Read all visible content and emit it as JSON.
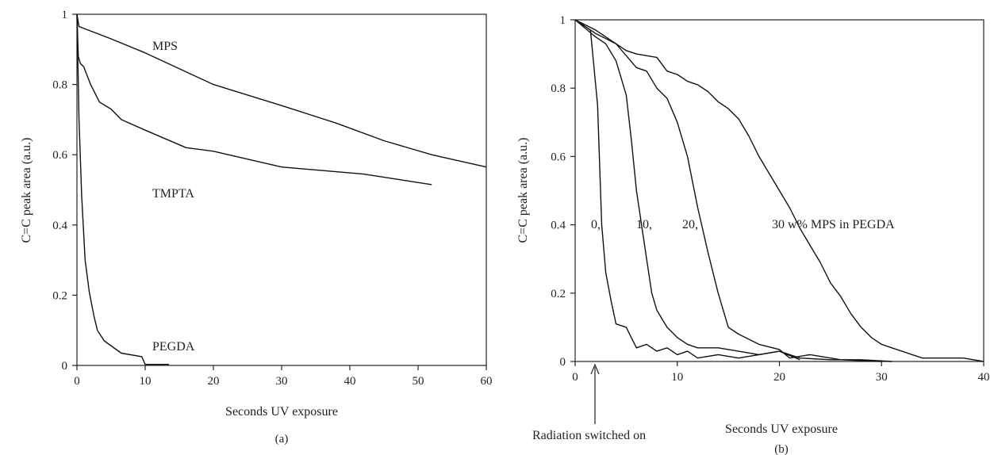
{
  "chart_data": [
    {
      "id": "a",
      "type": "line",
      "panel_label": "(a)",
      "title": "",
      "xlabel": "Seconds UV exposure",
      "ylabel": "C=C peak area (a.u.)",
      "xlim": [
        0,
        60
      ],
      "ylim": [
        0,
        1
      ],
      "xticks": [
        0,
        10,
        20,
        30,
        40,
        50,
        60
      ],
      "yticks": [
        0,
        0.2,
        0.4,
        0.6,
        0.8,
        1
      ],
      "series": [
        {
          "name": "MPS",
          "x": [
            0,
            0.3,
            5,
            10,
            20,
            30,
            38,
            45,
            52,
            60
          ],
          "y": [
            1,
            0.965,
            0.93,
            0.89,
            0.8,
            0.74,
            0.69,
            0.64,
            0.6,
            0.565
          ]
        },
        {
          "name": "TMPTA",
          "x": [
            0,
            0.2,
            0.5,
            1,
            2,
            3.3,
            5,
            6.5,
            10,
            16,
            20,
            30,
            42,
            52
          ],
          "y": [
            1,
            0.88,
            0.86,
            0.85,
            0.8,
            0.75,
            0.73,
            0.7,
            0.67,
            0.62,
            0.61,
            0.565,
            0.545,
            0.515
          ]
        },
        {
          "name": "PEGDA",
          "x": [
            0,
            0.3,
            0.7,
            1.2,
            1.8,
            2.5,
            3,
            4,
            6.5,
            9.5,
            10,
            13.5
          ],
          "y": [
            1,
            0.7,
            0.48,
            0.3,
            0.21,
            0.14,
            0.1,
            0.07,
            0.035,
            0.025,
            0.003,
            0.003
          ]
        }
      ]
    },
    {
      "id": "b",
      "type": "line",
      "panel_label": "(b)",
      "title": "",
      "xlabel": "Seconds UV exposure",
      "ylabel": "C=C peak area (a.u.)",
      "xlim": [
        0,
        40
      ],
      "ylim": [
        0,
        1
      ],
      "xticks": [
        0,
        10,
        20,
        30,
        40
      ],
      "yticks": [
        0,
        0.2,
        0.4,
        0.6,
        0.8,
        1
      ],
      "annotations": {
        "radiation": {
          "text": "Radiation switched on",
          "x": 2
        },
        "labels": [
          "0,",
          "10,",
          "20,",
          "30 w% MPS in PEGDA"
        ]
      },
      "series": [
        {
          "name": "0",
          "x": [
            0,
            1.5,
            2.2,
            2.6,
            3,
            3.5,
            4,
            5,
            6,
            7,
            8,
            9,
            10,
            11,
            12,
            14,
            16,
            18,
            20,
            22
          ],
          "y": [
            1,
            0.97,
            0.75,
            0.4,
            0.26,
            0.18,
            0.11,
            0.1,
            0.04,
            0.05,
            0.03,
            0.04,
            0.02,
            0.03,
            0.01,
            0.02,
            0.01,
            0.02,
            0.03,
            0.005
          ]
        },
        {
          "name": "10",
          "x": [
            0,
            2,
            3,
            4,
            5,
            5.5,
            6,
            6.5,
            7,
            7.5,
            8,
            9,
            10,
            11,
            12,
            14,
            16,
            18,
            20,
            22,
            25,
            28,
            31
          ],
          "y": [
            1,
            0.95,
            0.93,
            0.88,
            0.78,
            0.65,
            0.5,
            0.4,
            0.3,
            0.2,
            0.15,
            0.1,
            0.07,
            0.05,
            0.04,
            0.04,
            0.03,
            0.02,
            0.03,
            0.01,
            0.005,
            0.005,
            0.0
          ]
        },
        {
          "name": "20",
          "x": [
            0,
            2,
            4,
            6,
            7,
            8,
            9,
            10,
            11,
            12,
            13,
            14,
            15,
            16,
            18,
            20,
            21,
            23,
            26,
            30
          ],
          "y": [
            1,
            0.96,
            0.93,
            0.86,
            0.85,
            0.8,
            0.77,
            0.7,
            0.6,
            0.45,
            0.32,
            0.2,
            0.1,
            0.08,
            0.05,
            0.035,
            0.01,
            0.02,
            0.005,
            0.0
          ]
        },
        {
          "name": "30",
          "x": [
            0,
            2,
            4,
            5,
            6,
            8,
            9,
            10,
            11,
            12,
            13,
            14,
            15,
            16,
            17,
            18,
            19,
            20,
            21,
            22,
            23,
            24,
            25,
            26,
            27,
            28,
            29,
            30,
            31,
            32,
            33,
            34,
            36,
            38,
            40
          ],
          "y": [
            1,
            0.97,
            0.93,
            0.91,
            0.9,
            0.89,
            0.85,
            0.84,
            0.82,
            0.81,
            0.79,
            0.76,
            0.74,
            0.71,
            0.66,
            0.6,
            0.55,
            0.5,
            0.45,
            0.39,
            0.34,
            0.29,
            0.23,
            0.19,
            0.14,
            0.1,
            0.07,
            0.05,
            0.04,
            0.03,
            0.02,
            0.01,
            0.01,
            0.01,
            0.0
          ]
        }
      ]
    }
  ]
}
